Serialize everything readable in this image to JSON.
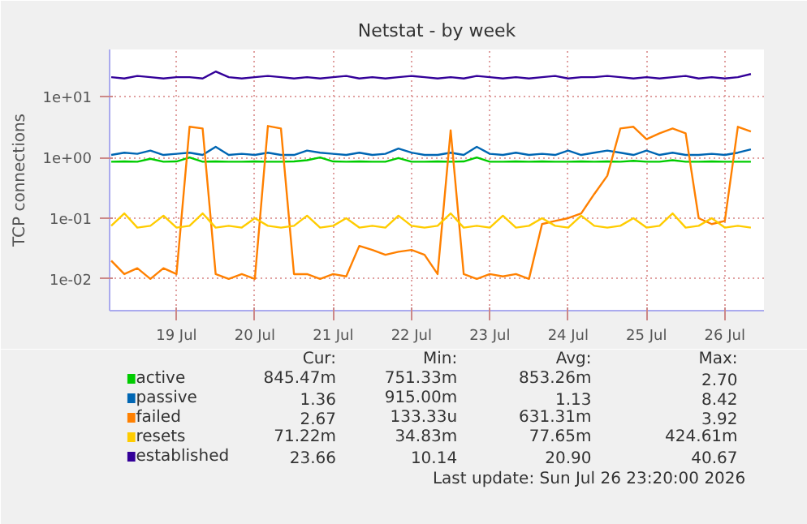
{
  "chart_data": {
    "type": "line",
    "title": "Netstat - by week",
    "ylabel": "TCP connections",
    "log": "y",
    "grid": true,
    "legend": "bottom",
    "marker": "none",
    "line_style": "solid",
    "xlim": [
      "2026-07-18T15:30",
      "2026-07-27T00:00"
    ],
    "ylim": [
      0.003,
      60
    ],
    "xticks": [
      {
        "value": "2026-07-19T12:00",
        "label": "19 Jul"
      },
      {
        "value": "2026-07-20T12:00",
        "label": "20 Jul"
      },
      {
        "value": "2026-07-21T12:00",
        "label": "21 Jul"
      },
      {
        "value": "2026-07-22T12:00",
        "label": "22 Jul"
      },
      {
        "value": "2026-07-23T12:00",
        "label": "23 Jul"
      },
      {
        "value": "2026-07-24T12:00",
        "label": "24 Jul"
      },
      {
        "value": "2026-07-25T12:00",
        "label": "25 Jul"
      },
      {
        "value": "2026-07-26T12:00",
        "label": "26 Jul"
      }
    ],
    "yticks": [
      {
        "value": 0.01,
        "label": "1e-02"
      },
      {
        "value": 0.1,
        "label": "1e-01"
      },
      {
        "value": 1,
        "label": "1e+00"
      },
      {
        "value": 10,
        "label": "1e+01"
      }
    ],
    "x": [
      "2026-07-18T16:00",
      "2026-07-18T20:00",
      "2026-07-19T00:00",
      "2026-07-19T04:00",
      "2026-07-19T08:00",
      "2026-07-19T12:00",
      "2026-07-19T16:00",
      "2026-07-19T20:00",
      "2026-07-20T00:00",
      "2026-07-20T04:00",
      "2026-07-20T08:00",
      "2026-07-20T12:00",
      "2026-07-20T16:00",
      "2026-07-20T20:00",
      "2026-07-21T00:00",
      "2026-07-21T04:00",
      "2026-07-21T08:00",
      "2026-07-21T12:00",
      "2026-07-21T16:00",
      "2026-07-21T20:00",
      "2026-07-22T00:00",
      "2026-07-22T04:00",
      "2026-07-22T08:00",
      "2026-07-22T12:00",
      "2026-07-22T16:00",
      "2026-07-22T20:00",
      "2026-07-23T00:00",
      "2026-07-23T04:00",
      "2026-07-23T08:00",
      "2026-07-23T12:00",
      "2026-07-23T16:00",
      "2026-07-23T20:00",
      "2026-07-24T00:00",
      "2026-07-24T04:00",
      "2026-07-24T08:00",
      "2026-07-24T12:00",
      "2026-07-24T16:00",
      "2026-07-24T20:00",
      "2026-07-25T00:00",
      "2026-07-25T04:00",
      "2026-07-25T08:00",
      "2026-07-25T12:00",
      "2026-07-25T16:00",
      "2026-07-25T20:00",
      "2026-07-26T00:00",
      "2026-07-26T04:00",
      "2026-07-26T08:00",
      "2026-07-26T12:00",
      "2026-07-26T16:00",
      "2026-07-26T20:00"
    ],
    "series": [
      {
        "name": "active",
        "color": "#00cc00",
        "values": [
          0.85,
          0.86,
          0.85,
          0.95,
          0.85,
          0.86,
          1.0,
          0.85,
          0.86,
          0.85,
          0.85,
          0.86,
          0.85,
          0.85,
          0.86,
          0.9,
          1.0,
          0.86,
          0.85,
          0.86,
          0.85,
          0.85,
          0.98,
          0.85,
          0.85,
          0.86,
          0.85,
          0.86,
          1.0,
          0.85,
          0.85,
          0.86,
          0.85,
          0.86,
          0.85,
          0.85,
          0.86,
          0.85,
          0.86,
          0.85,
          0.88,
          0.85,
          0.85,
          0.9,
          0.85,
          0.85,
          0.86,
          0.85,
          0.85,
          0.85
        ]
      },
      {
        "name": "passive",
        "color": "#0066b3",
        "values": [
          1.1,
          1.2,
          1.15,
          1.3,
          1.1,
          1.15,
          1.2,
          1.1,
          1.5,
          1.1,
          1.15,
          1.1,
          1.2,
          1.1,
          1.1,
          1.3,
          1.2,
          1.15,
          1.1,
          1.2,
          1.1,
          1.15,
          1.4,
          1.2,
          1.1,
          1.1,
          1.2,
          1.1,
          1.5,
          1.15,
          1.1,
          1.2,
          1.1,
          1.15,
          1.1,
          1.3,
          1.1,
          1.2,
          1.3,
          1.2,
          1.1,
          1.3,
          1.1,
          1.2,
          1.1,
          1.1,
          1.15,
          1.1,
          1.2,
          1.36
        ]
      },
      {
        "name": "failed",
        "color": "#ff8000",
        "values": [
          0.02,
          0.012,
          0.015,
          0.01,
          0.015,
          0.012,
          3.2,
          3.0,
          0.012,
          0.01,
          0.012,
          0.01,
          3.3,
          3.0,
          0.012,
          0.012,
          0.01,
          0.012,
          0.011,
          0.035,
          0.03,
          0.025,
          0.028,
          0.03,
          0.025,
          0.012,
          2.8,
          0.012,
          0.01,
          0.012,
          0.011,
          0.012,
          0.01,
          0.08,
          0.09,
          0.1,
          0.12,
          0.25,
          0.5,
          3.0,
          3.2,
          2.0,
          2.5,
          3.0,
          2.5,
          0.1,
          0.08,
          0.09,
          3.2,
          2.67
        ]
      },
      {
        "name": "resets",
        "color": "#ffcc00",
        "values": [
          0.075,
          0.12,
          0.07,
          0.075,
          0.11,
          0.07,
          0.075,
          0.12,
          0.07,
          0.075,
          0.07,
          0.1,
          0.075,
          0.07,
          0.075,
          0.11,
          0.07,
          0.075,
          0.1,
          0.07,
          0.075,
          0.07,
          0.11,
          0.075,
          0.07,
          0.075,
          0.12,
          0.07,
          0.075,
          0.07,
          0.11,
          0.07,
          0.075,
          0.1,
          0.075,
          0.07,
          0.11,
          0.075,
          0.07,
          0.075,
          0.1,
          0.07,
          0.075,
          0.12,
          0.07,
          0.075,
          0.1,
          0.07,
          0.075,
          0.07
        ]
      },
      {
        "name": "established",
        "color": "#330099",
        "values": [
          21,
          20,
          22,
          21,
          20,
          21,
          21,
          20,
          26,
          21,
          20,
          21,
          22,
          21,
          20,
          21,
          20,
          21,
          22,
          20,
          21,
          20,
          21,
          22,
          21,
          20,
          21,
          20,
          22,
          21,
          20,
          21,
          20,
          21,
          22,
          20,
          21,
          21,
          22,
          21,
          20,
          21,
          20,
          21,
          22,
          20,
          21,
          20,
          21,
          23.66
        ]
      }
    ],
    "annotations": [
      "Cur:",
      "Min:",
      "Avg:",
      "Max:",
      "845.47m",
      "751.33m",
      "853.26m",
      "2.70",
      "1.36",
      "915.00m",
      "1.13",
      "8.42",
      "2.67",
      "133.33u",
      "631.31m",
      "3.92",
      "71.22m",
      "34.83m",
      "77.65m",
      "424.61m",
      "23.66",
      "10.14",
      "20.90",
      "40.67",
      "Last update: Sun Jul 26 23:20:00 2026"
    ]
  }
}
